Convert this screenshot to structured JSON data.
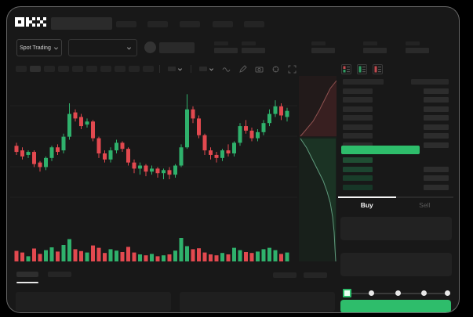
{
  "brand": {
    "logo_text": "OKX"
  },
  "header": {
    "market_selector_label": "Spot Trading"
  },
  "trade_panel": {
    "buy_tab": "Buy",
    "sell_tab": "Sell"
  },
  "colors": {
    "candle_green": "#2fb16c",
    "candle_red": "#e2494f",
    "accent_green": "#2ebd6b",
    "depth_ask_line": "#b96a66",
    "depth_bid_line": "#7dc9a4"
  },
  "orderbook": {
    "ask_row_count": 7,
    "bid_row_count": 4,
    "bid_row_colors": [
      "#1f4e33",
      "#1c4530",
      "#193d2a",
      "#173627"
    ]
  },
  "chart_data": {
    "type": "candlestick",
    "title": "",
    "xlabel": "",
    "ylabel": "",
    "price_scale": [
      0,
      100
    ],
    "grid": true,
    "candles": [
      {
        "o": 55,
        "c": 51,
        "h": 57,
        "l": 49
      },
      {
        "o": 52,
        "c": 48,
        "h": 54,
        "l": 46
      },
      {
        "o": 49,
        "c": 51,
        "h": 52,
        "l": 47
      },
      {
        "o": 51,
        "c": 43,
        "h": 52,
        "l": 41
      },
      {
        "o": 44,
        "c": 41,
        "h": 45,
        "l": 38
      },
      {
        "o": 41,
        "c": 47,
        "h": 48,
        "l": 39
      },
      {
        "o": 47,
        "c": 54,
        "h": 55,
        "l": 45
      },
      {
        "o": 54,
        "c": 51,
        "h": 56,
        "l": 49
      },
      {
        "o": 52,
        "c": 61,
        "h": 63,
        "l": 50
      },
      {
        "o": 61,
        "c": 76,
        "h": 83,
        "l": 59
      },
      {
        "o": 77,
        "c": 73,
        "h": 79,
        "l": 71
      },
      {
        "o": 74,
        "c": 68,
        "h": 76,
        "l": 66
      },
      {
        "o": 69,
        "c": 71,
        "h": 73,
        "l": 67
      },
      {
        "o": 71,
        "c": 60,
        "h": 72,
        "l": 58
      },
      {
        "o": 60,
        "c": 50,
        "h": 61,
        "l": 47
      },
      {
        "o": 50,
        "c": 46,
        "h": 52,
        "l": 44
      },
      {
        "o": 46,
        "c": 52,
        "h": 54,
        "l": 44
      },
      {
        "o": 52,
        "c": 57,
        "h": 59,
        "l": 50
      },
      {
        "o": 57,
        "c": 53,
        "h": 58,
        "l": 51
      },
      {
        "o": 53,
        "c": 44,
        "h": 54,
        "l": 42
      },
      {
        "o": 44,
        "c": 40,
        "h": 46,
        "l": 37
      },
      {
        "o": 40,
        "c": 42,
        "h": 44,
        "l": 36
      },
      {
        "o": 42,
        "c": 38,
        "h": 43,
        "l": 35
      },
      {
        "o": 38,
        "c": 40,
        "h": 42,
        "l": 36
      },
      {
        "o": 40,
        "c": 37,
        "h": 41,
        "l": 34
      },
      {
        "o": 37,
        "c": 39,
        "h": 40,
        "l": 33
      },
      {
        "o": 39,
        "c": 36,
        "h": 41,
        "l": 33
      },
      {
        "o": 36,
        "c": 42,
        "h": 43,
        "l": 34
      },
      {
        "o": 42,
        "c": 54,
        "h": 56,
        "l": 41
      },
      {
        "o": 54,
        "c": 79,
        "h": 89,
        "l": 53
      },
      {
        "o": 79,
        "c": 73,
        "h": 81,
        "l": 70
      },
      {
        "o": 73,
        "c": 62,
        "h": 75,
        "l": 60
      },
      {
        "o": 62,
        "c": 52,
        "h": 63,
        "l": 49
      },
      {
        "o": 52,
        "c": 49,
        "h": 54,
        "l": 46
      },
      {
        "o": 49,
        "c": 47,
        "h": 51,
        "l": 44
      },
      {
        "o": 47,
        "c": 52,
        "h": 53,
        "l": 45
      },
      {
        "o": 52,
        "c": 50,
        "h": 56,
        "l": 48
      },
      {
        "o": 50,
        "c": 57,
        "h": 58,
        "l": 48
      },
      {
        "o": 57,
        "c": 68,
        "h": 70,
        "l": 55
      },
      {
        "o": 68,
        "c": 65,
        "h": 72,
        "l": 63
      },
      {
        "o": 65,
        "c": 60,
        "h": 67,
        "l": 58
      },
      {
        "o": 60,
        "c": 64,
        "h": 66,
        "l": 58
      },
      {
        "o": 64,
        "c": 70,
        "h": 72,
        "l": 62
      },
      {
        "o": 70,
        "c": 76,
        "h": 79,
        "l": 68
      },
      {
        "o": 76,
        "c": 81,
        "h": 85,
        "l": 74
      },
      {
        "o": 81,
        "c": 75,
        "h": 83,
        "l": 72
      },
      {
        "o": 74,
        "c": 78,
        "h": 80,
        "l": 71
      }
    ],
    "volumes": [
      45,
      38,
      22,
      55,
      32,
      48,
      60,
      42,
      70,
      95,
      52,
      44,
      38,
      68,
      58,
      36,
      52,
      46,
      40,
      62,
      38,
      30,
      26,
      32,
      22,
      26,
      30,
      46,
      100,
      65,
      52,
      56,
      38,
      30,
      26,
      36,
      30,
      58,
      48,
      40,
      36,
      42,
      52,
      58,
      48,
      32,
      38
    ],
    "depth": {
      "asks_line": [
        [
          48,
          6
        ],
        [
          40,
          16
        ],
        [
          33,
          30
        ],
        [
          26,
          44
        ],
        [
          18,
          58
        ],
        [
          8,
          70
        ],
        [
          2,
          77
        ]
      ],
      "bids_line": [
        [
          2,
          80
        ],
        [
          10,
          92
        ],
        [
          17,
          106
        ],
        [
          24,
          120
        ],
        [
          31,
          134
        ],
        [
          36,
          148
        ],
        [
          40,
          162
        ],
        [
          43,
          180
        ],
        [
          45,
          200
        ],
        [
          46,
          220
        ],
        [
          47,
          237
        ]
      ]
    }
  }
}
